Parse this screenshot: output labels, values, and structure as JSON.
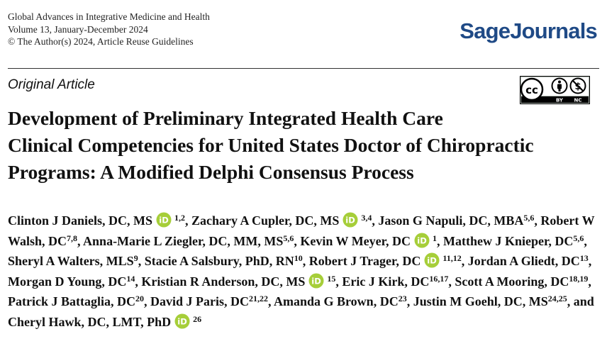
{
  "journal": {
    "name": "Global Advances in Integrative Medicine and Health",
    "volume": "Volume 13, January-December 2024",
    "copyright": "© The Author(s) 2024, Article Reuse Guidelines"
  },
  "publisher": {
    "logo_text": "SageJournals",
    "brand_color": "#1f4a86"
  },
  "article": {
    "type": "Original Article",
    "title_lines": [
      "Development of Preliminary Integrated Health Care",
      "Clinical Competencies for United States Doctor of Chiropractic",
      "Programs: A Modified Delphi Consensus Process"
    ]
  },
  "license": {
    "icons": [
      "cc-icon",
      "by-icon",
      "nc-icon"
    ],
    "labels": [
      "BY",
      "NC"
    ]
  },
  "orcid": {
    "icon": "orcid-icon",
    "color": "#a6ce39",
    "label": "iD"
  },
  "authors": [
    {
      "name": "Clinton J Daniels, DC, MS",
      "sup": "1,2",
      "orcid": true,
      "sep": ", "
    },
    {
      "name": "Zachary A Cupler, DC, MS",
      "sup": "3,4",
      "orcid": true,
      "sep": ", "
    },
    {
      "name": "Jason G Napuli, DC, MBA",
      "sup": "5,6",
      "orcid": false,
      "sep": ", "
    },
    {
      "name": "Robert W Walsh, DC",
      "sup": "7,8",
      "orcid": false,
      "sep": ", "
    },
    {
      "name": "Anna-Marie L Ziegler, DC, MM, MS",
      "sup": "5,6",
      "orcid": false,
      "sep": ", "
    },
    {
      "name": "Kevin W Meyer, DC",
      "sup": "1",
      "orcid": true,
      "sep": ", "
    },
    {
      "name": "Matthew J Knieper, DC",
      "sup": "5,6",
      "orcid": false,
      "sep": ", "
    },
    {
      "name": "Sheryl A Walters, MLS",
      "sup": "9",
      "orcid": false,
      "sep": ", "
    },
    {
      "name": "Stacie A Salsbury, PhD, RN",
      "sup": "10",
      "orcid": false,
      "sep": ", "
    },
    {
      "name": "Robert J Trager, DC",
      "sup": "11,12",
      "orcid": true,
      "sep": ", "
    },
    {
      "name": "Jordan A Gliedt, DC",
      "sup": "13",
      "orcid": false,
      "sep": ", "
    },
    {
      "name": "Morgan D Young, DC",
      "sup": "14",
      "orcid": false,
      "sep": ", "
    },
    {
      "name": "Kristian R Anderson, DC, MS",
      "sup": "15",
      "orcid": true,
      "sep": ", "
    },
    {
      "name": "Eric J Kirk, DC",
      "sup": "16,17",
      "orcid": false,
      "sep": ", "
    },
    {
      "name": "Scott A Mooring, DC",
      "sup": "18,19",
      "orcid": false,
      "sep": ", "
    },
    {
      "name": "Patrick J Battaglia, DC",
      "sup": "20",
      "orcid": false,
      "sep": ", "
    },
    {
      "name": "David J Paris, DC",
      "sup": "21,22",
      "orcid": false,
      "sep": ", "
    },
    {
      "name": "Amanda G Brown, DC",
      "sup": "23",
      "orcid": false,
      "sep": ", "
    },
    {
      "name": "Justin M Goehl, DC, MS",
      "sup": "24,25",
      "orcid": false,
      "sep": ", and "
    },
    {
      "name": "Cheryl Hawk, DC, LMT, PhD",
      "sup": "26",
      "orcid": true,
      "sep": ""
    }
  ]
}
